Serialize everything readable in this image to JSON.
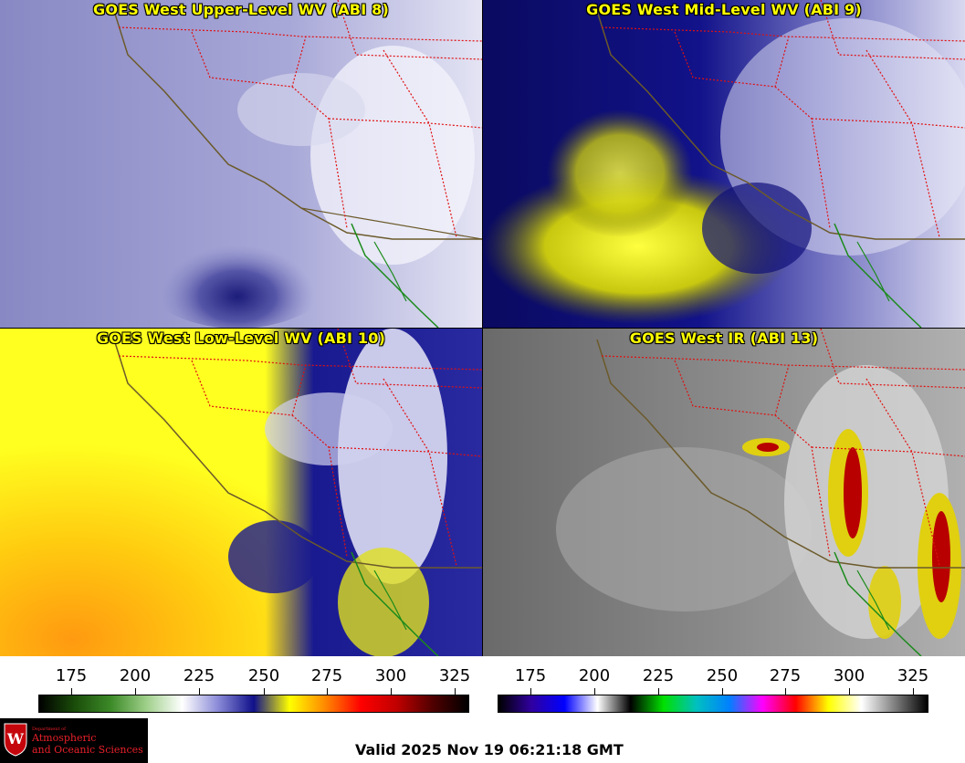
{
  "panels": [
    {
      "title": "GOES West Upper-Level WV (ABI 8)"
    },
    {
      "title": "GOES West Mid-Level WV (ABI 9)"
    },
    {
      "title": "GOES West Low-Level WV (ABI 10)"
    },
    {
      "title": "GOES West IR (ABI 13)"
    }
  ],
  "wv_scale": {
    "ticks": [
      "175",
      "200",
      "225",
      "250",
      "275",
      "300",
      "325"
    ],
    "colors": [
      "#000000",
      "#1a4d0a",
      "#3c8a28",
      "#9fd08a",
      "#ffffff",
      "#8a8ad8",
      "#10108a",
      "#ffff00",
      "#ff8800",
      "#ff0000",
      "#c00000",
      "#500000",
      "#000000"
    ]
  },
  "ir_scale": {
    "ticks": [
      "175",
      "200",
      "225",
      "250",
      "275",
      "300",
      "325"
    ],
    "colors": [
      "#000000",
      "#3000a0",
      "#0000ff",
      "#ffffff",
      "#000000",
      "#00e000",
      "#00c0c0",
      "#0080ff",
      "#ff00ff",
      "#ff0000",
      "#ffff00",
      "#ffffff",
      "#808080",
      "#000000"
    ]
  },
  "logo": {
    "small": "Department of",
    "line1": "Atmospheric",
    "line2": "and Oceanic Sciences"
  },
  "valid_text": "Valid 2025 Nov 19 06:21:18 GMT"
}
